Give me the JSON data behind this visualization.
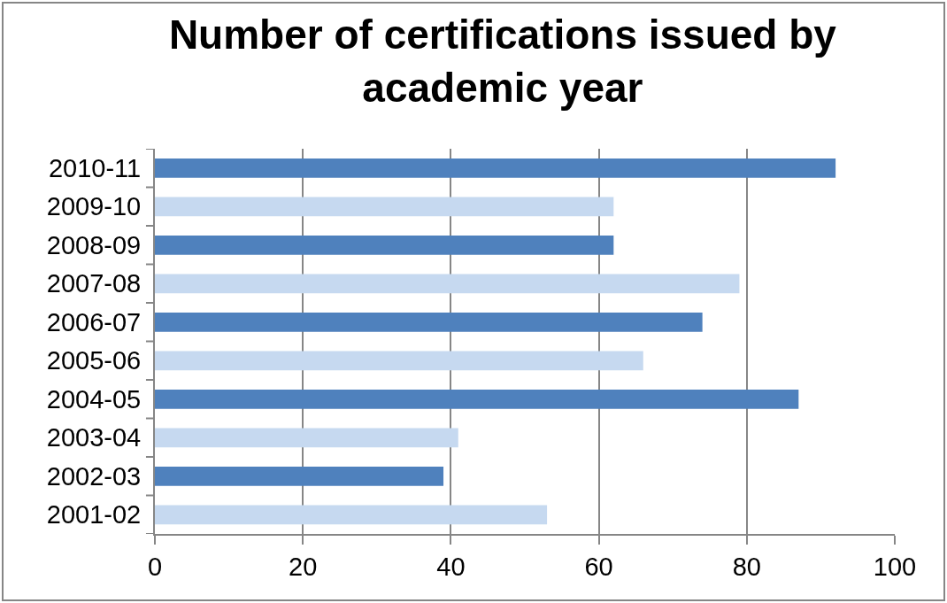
{
  "chart_data": {
    "type": "bar",
    "orientation": "horizontal",
    "title": "Number of certifications issued by academic year",
    "categories": [
      "2010-11",
      "2009-10",
      "2008-09",
      "2007-08",
      "2006-07",
      "2005-06",
      "2004-05",
      "2003-04",
      "2002-03",
      "2001-02"
    ],
    "values": [
      92,
      62,
      62,
      79,
      74,
      66,
      87,
      41,
      39,
      53
    ],
    "colors": [
      "#4f81bd",
      "#c6d9f0",
      "#4f81bd",
      "#c6d9f0",
      "#4f81bd",
      "#c6d9f0",
      "#4f81bd",
      "#c6d9f0",
      "#4f81bd",
      "#c6d9f0"
    ],
    "xlim": [
      0,
      100
    ],
    "xticks": [
      0,
      20,
      40,
      60,
      80,
      100
    ],
    "grid": "x"
  }
}
